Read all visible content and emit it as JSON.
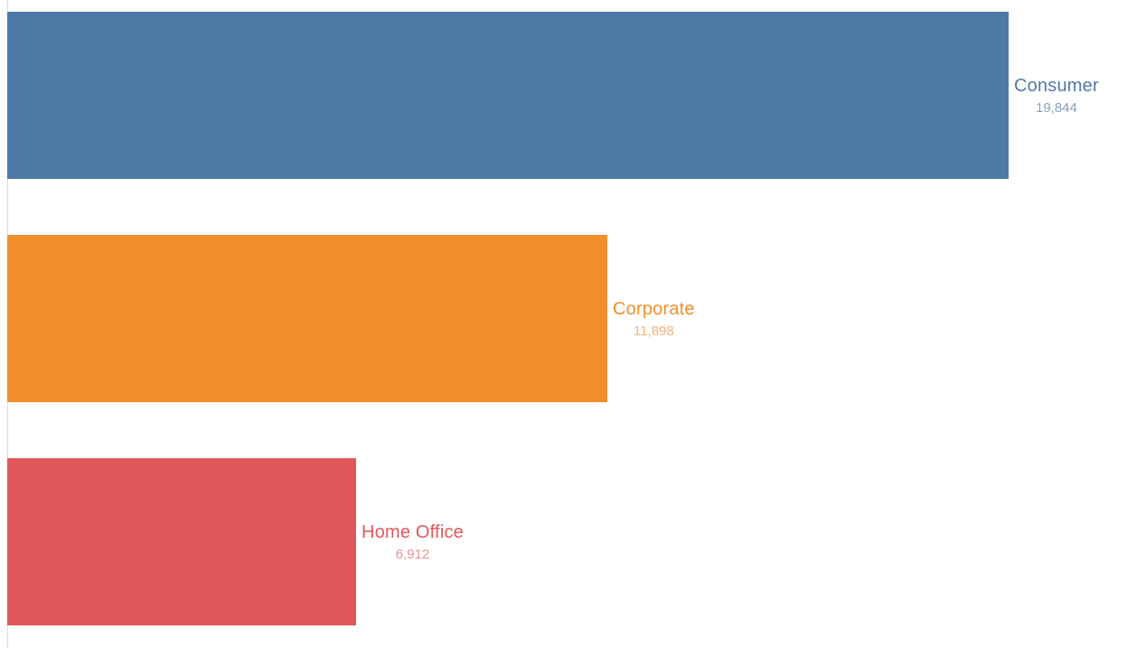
{
  "chart_data": {
    "type": "bar",
    "orientation": "horizontal",
    "title": "",
    "categories": [
      "Consumer",
      "Corporate",
      "Home Office"
    ],
    "values": [
      19844,
      11898,
      6912
    ],
    "value_labels": [
      "19,844",
      "11,898",
      "6,912"
    ],
    "colors": [
      "#4e79a7",
      "#f28e2b",
      "#e15759"
    ],
    "value_label_colors": [
      "#85a0bd",
      "#f6b377",
      "#eb9093"
    ],
    "background_color": "#ffffff",
    "axis_line_color": "#dcdcdc",
    "legend": "none",
    "grid": false,
    "xlim": [
      0,
      22000
    ],
    "label_position": "end-of-bar"
  }
}
